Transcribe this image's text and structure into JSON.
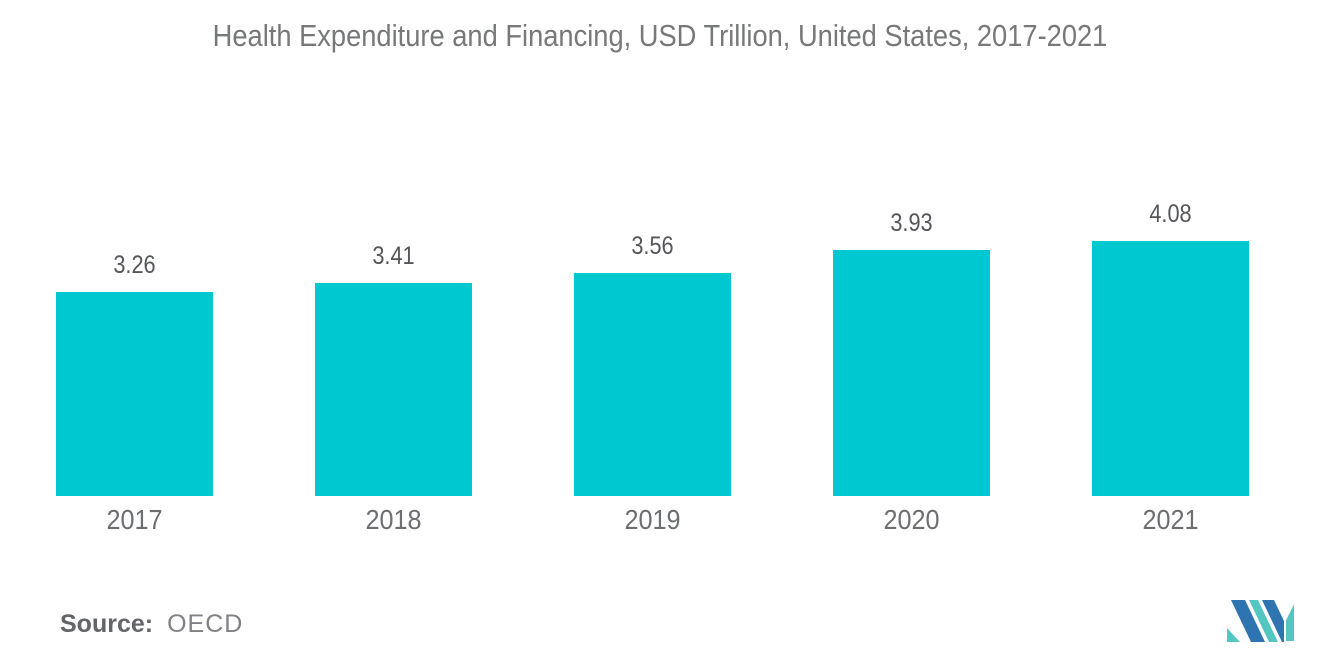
{
  "title": "Health Expenditure and Financing, USD Trillion, United States, 2017-2021",
  "source": {
    "label": "Source:",
    "value": "OECD"
  },
  "colors": {
    "bar": "#00c8d1",
    "title_text": "#77787a",
    "value_label_text": "#55565a",
    "year_label_text": "#6d6e71",
    "source_text": "#6e6f72",
    "logo_blue": "#2e74b0",
    "logo_teal": "#54c6c2",
    "background": "#ffffff"
  },
  "chart_data": {
    "type": "bar",
    "title": "Health Expenditure and Financing, USD Trillion, United States, 2017-2021",
    "categories": [
      "2017",
      "2018",
      "2019",
      "2020",
      "2021"
    ],
    "values": [
      3.26,
      3.41,
      3.56,
      3.93,
      4.08
    ],
    "value_labels": [
      "3.26",
      "3.41",
      "3.56",
      "3.93",
      "4.08"
    ],
    "series_name": "Health Expenditure and Financing (USD Trillion)",
    "xlabel": "",
    "ylabel": "",
    "ylim": [
      0,
      4.6
    ],
    "grid": false,
    "legend": false,
    "axes_visible": false,
    "bar_color": "#00c8d1",
    "value_label_position": "above-bar"
  }
}
